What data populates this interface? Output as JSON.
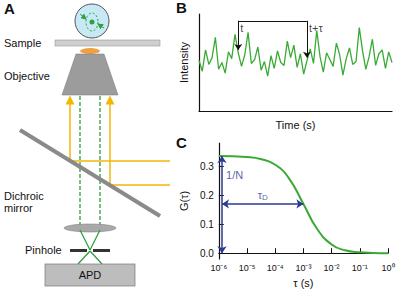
{
  "panels": [
    "A",
    "B",
    "C"
  ],
  "diagram": {
    "labels": {
      "sample": "Sample",
      "objective": "Objective",
      "dichroic_mirror": [
        "Dichroic",
        "mirror"
      ],
      "pinhole": "Pinhole",
      "detector": "APD"
    }
  },
  "chart_data": [
    {
      "type": "line",
      "x_label": "Time (s)",
      "y_label": "Intensity",
      "color": "#3aaa35",
      "tick_labels": false,
      "ylim": [
        0,
        10
      ],
      "values": [
        5.2,
        4.1,
        6.3,
        4.8,
        5.5,
        7.6,
        4.3,
        5.0,
        3.9,
        6.1,
        5.4,
        7.9,
        6.0,
        4.6,
        5.8,
        8.1,
        4.9,
        5.3,
        6.6,
        4.2,
        5.1,
        3.6,
        5.7,
        4.4,
        6.2,
        5.0,
        4.7,
        7.2,
        5.5,
        6.8,
        4.5,
        5.9,
        3.8,
        5.2,
        6.4,
        4.9,
        8.3,
        5.6,
        4.0,
        6.0,
        5.3,
        4.6,
        7.0,
        5.8,
        3.7,
        5.4,
        6.5,
        4.8,
        5.1,
        8.6,
        6.2,
        4.3,
        5.6,
        7.4,
        4.7,
        5.9,
        6.3,
        4.4,
        6.1,
        5.0
      ],
      "annotations": [
        {
          "text": "t",
          "index": 12
        },
        {
          "text": "t+τ",
          "index": 33
        }
      ]
    },
    {
      "type": "line",
      "x_label": "τ (s)",
      "y_label": "G(τ)",
      "color": "#3aaa35",
      "log": "x",
      "xlim": [
        1e-06,
        1
      ],
      "xticks": [
        {
          "value": 1e-06,
          "label": "10⁻⁶"
        },
        {
          "value": 1e-05,
          "label": "10⁻⁵"
        },
        {
          "value": 0.0001,
          "label": "10⁻⁴"
        },
        {
          "value": 0.001,
          "label": "10⁻³"
        },
        {
          "value": 0.01,
          "label": "10⁻²"
        },
        {
          "value": 0.1,
          "label": "10⁻¹"
        },
        {
          "value": 1,
          "label": "10⁰"
        }
      ],
      "ylim": [
        -0.02,
        0.38
      ],
      "yticks": [
        {
          "value": 0,
          "label": "0.0"
        },
        0.1,
        0.2,
        0.3
      ],
      "x": [
        1e-06,
        3e-06,
        1e-05,
        3e-05,
        0.0001,
        0.0003,
        0.001,
        0.003,
        0.01,
        0.03,
        0.1,
        0.3,
        1
      ],
      "values": [
        0.335,
        0.334,
        0.332,
        0.325,
        0.305,
        0.26,
        0.17,
        0.085,
        0.03,
        0.01,
        0.003,
        0.001,
        0.0
      ],
      "annotations": [
        {
          "text": "1/N",
          "x": [
            1.3e-06,
            1.3e-06
          ],
          "y": [
            0,
            0.335
          ]
        },
        {
          "text": "τ",
          "subscript": "D",
          "x": [
            1.3e-06,
            0.001
          ],
          "y": [
            0.17,
            0.17
          ]
        }
      ]
    }
  ]
}
